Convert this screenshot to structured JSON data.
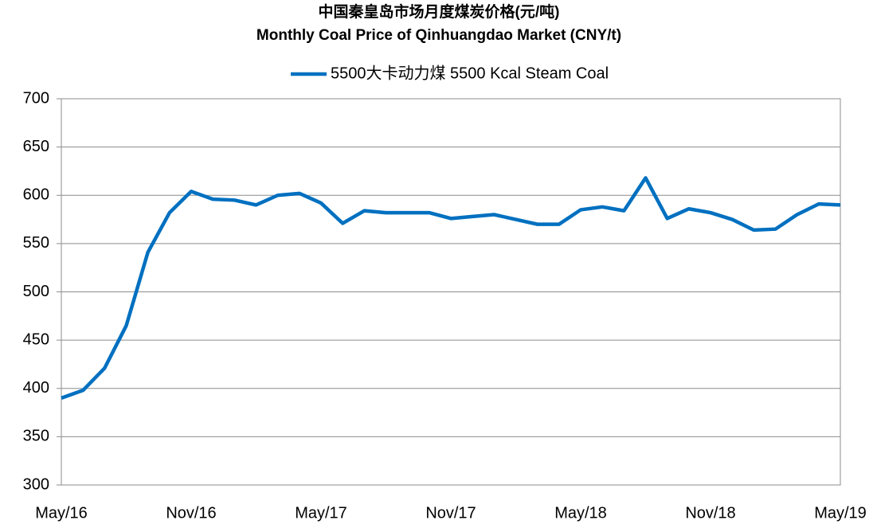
{
  "chart_data": {
    "type": "line",
    "title": "中国秦皇岛市场月度煤炭价格(元/吨)",
    "subtitle": "Monthly Coal Price of Qinhuangdao Market (CNY/t)",
    "categories": [
      "May/16",
      null,
      null,
      null,
      null,
      null,
      "Nov/16",
      null,
      null,
      null,
      null,
      null,
      "May/17",
      null,
      null,
      null,
      null,
      null,
      "Nov/17",
      null,
      null,
      null,
      null,
      null,
      "May/18",
      null,
      null,
      null,
      null,
      null,
      "Nov/18",
      null,
      null,
      null,
      null,
      null,
      "May/19"
    ],
    "series": [
      {
        "name": "5500大卡动力煤 5500 Kcal Steam Coal",
        "color": "#0070c0",
        "values": [
          390,
          398,
          421,
          465,
          541,
          582,
          604,
          596,
          595,
          590,
          600,
          602,
          592,
          571,
          584,
          582,
          582,
          582,
          576,
          578,
          580,
          575,
          570,
          570,
          585,
          588,
          584,
          618,
          576,
          586,
          582,
          575,
          564,
          565,
          580,
          591,
          590
        ]
      }
    ],
    "ylim": [
      300,
      700
    ],
    "yticks": [
      300,
      350,
      400,
      450,
      500,
      550,
      600,
      650,
      700
    ],
    "grid": true,
    "legend": "top"
  }
}
